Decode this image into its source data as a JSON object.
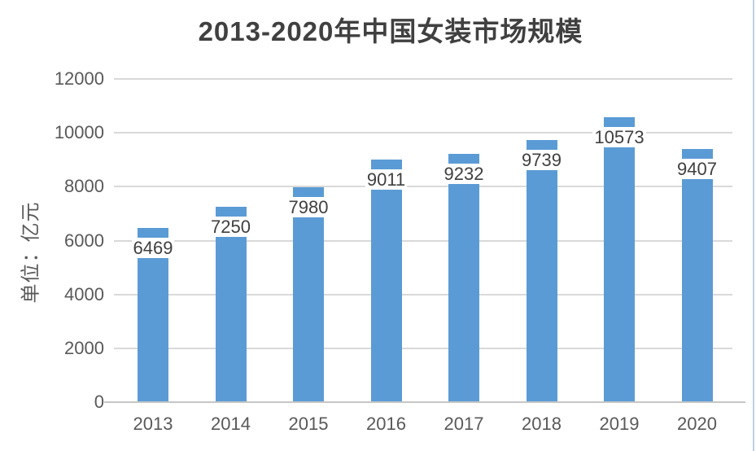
{
  "chart_data": {
    "type": "bar",
    "title": "2013-2020年中国女装市场规模",
    "ylabel": "单位：亿元",
    "xlabel": "",
    "categories": [
      "2013",
      "2014",
      "2015",
      "2016",
      "2017",
      "2018",
      "2019",
      "2020"
    ],
    "values": [
      6469,
      7250,
      7980,
      9011,
      9232,
      9739,
      10573,
      9407
    ],
    "data_labels_visible": true,
    "yticks": [
      0,
      2000,
      4000,
      6000,
      8000,
      10000,
      12000
    ],
    "ylim": [
      0,
      12000
    ],
    "grid": true,
    "legend_position": "none",
    "colors": {
      "bar": "#5B9BD5",
      "title_text": "#404040",
      "axis_text": "#595959",
      "data_label_text": "#404040",
      "data_label_background": "#ffffff",
      "gridline": "#D9D9D9",
      "axis_line": "#C6C6C6",
      "right_edge_line": "#BFCFE0",
      "background": "#ffffff"
    }
  }
}
